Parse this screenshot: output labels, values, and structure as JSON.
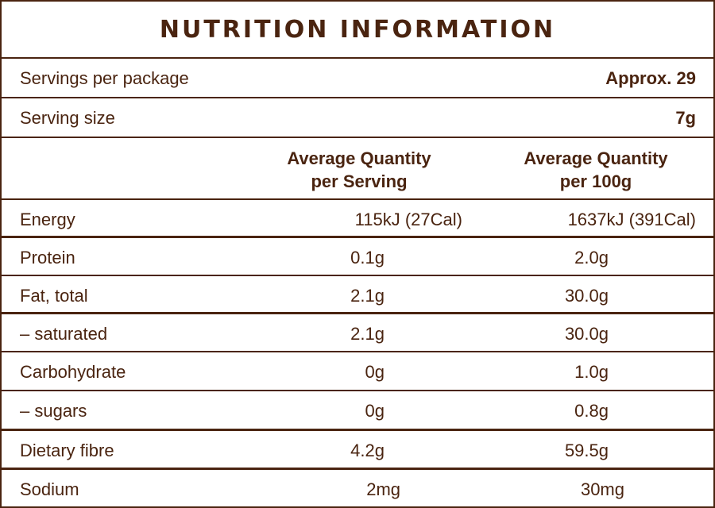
{
  "title": "NUTRITION INFORMATION",
  "servings_per_package": {
    "label": "Servings per package",
    "value": "Approx. 29"
  },
  "serving_size": {
    "label": "Serving size",
    "value": "7g"
  },
  "headers": {
    "per_serving_line1": "Average Quantity",
    "per_serving_line2": "per Serving",
    "per_100g_line1": "Average Quantity",
    "per_100g_line2": "per 100g"
  },
  "rows": [
    {
      "name": "Energy",
      "per_serving": "115kJ (27Cal)",
      "per_100g": "1637kJ (391Cal)"
    },
    {
      "name": "Protein",
      "per_serving": "0.1g",
      "per_100g": "2.0g"
    },
    {
      "name": "Fat, total",
      "per_serving": "2.1g",
      "per_100g": "30.0g"
    },
    {
      "name": "– saturated",
      "per_serving": "2.1g",
      "per_100g": "30.0g"
    },
    {
      "name": "Carbohydrate",
      "per_serving": "0g",
      "per_100g": "1.0g"
    },
    {
      "name": "– sugars",
      "per_serving": "0g",
      "per_100g": "0.8g"
    },
    {
      "name": "Dietary fibre",
      "per_serving": "4.2g",
      "per_100g": "59.5g"
    },
    {
      "name": "Sodium",
      "per_serving": "2mg",
      "per_100g": "30mg"
    }
  ],
  "colors": {
    "text": "#4a2410",
    "border": "#4a2410",
    "background": "#ffffff"
  }
}
